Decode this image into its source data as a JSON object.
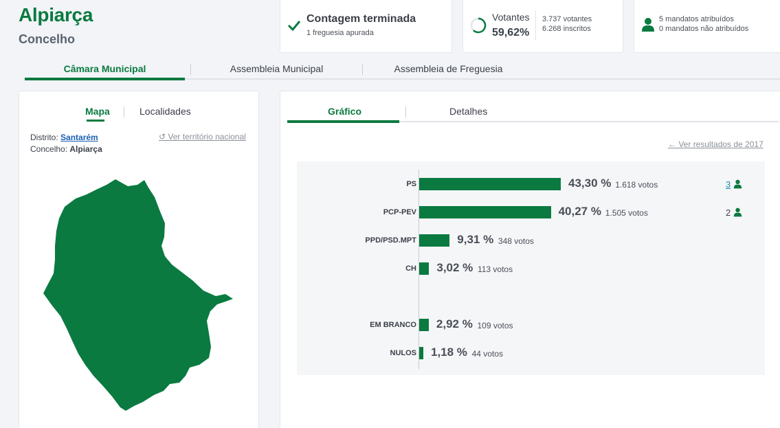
{
  "header": {
    "title": "Alpiarça",
    "subtitle": "Concelho"
  },
  "cards": {
    "status": {
      "title": "Contagem terminada",
      "subtitle": "1 freguesia apurada"
    },
    "voters": {
      "label": "Votantes",
      "percent": "59,62%",
      "percent_value": 59.62,
      "line1": "3.737 votantes",
      "line2": "6.268 inscritos"
    },
    "mandates": {
      "line1": "5 mandatos atribuídos",
      "line2": "0 mandatos não atribuídos"
    }
  },
  "main_tabs": [
    "Câmara Municipal",
    "Assembleia Municipal",
    "Assembleia de Freguesia"
  ],
  "left": {
    "tabs": [
      "Mapa",
      "Localidades"
    ],
    "district_label": "Distrito:",
    "district_value": "Santarém",
    "council_label": "Concelho:",
    "council_value": "Alpiarça",
    "reset_link": "Ver território nacional"
  },
  "right": {
    "tabs": [
      "Gráfico",
      "Detalhes"
    ],
    "back_link": "Ver resultados de 2017"
  },
  "chart_data": {
    "type": "bar",
    "categories": [
      "PS",
      "PCP-PEV",
      "PPD/PSD.MPT",
      "CH",
      "EM BRANCO",
      "NULOS"
    ],
    "values": [
      43.3,
      40.27,
      9.31,
      3.02,
      2.92,
      1.18
    ],
    "percent_labels": [
      "43,30 %",
      "40,27 %",
      "9,31 %",
      "3,02 %",
      "2,92 %",
      "1,18 %"
    ],
    "votes_labels": [
      "1.618 votos",
      "1.505 votos",
      "348 votos",
      "113 votos",
      "109 votos",
      "44 votos"
    ],
    "mandates": [
      "3",
      "2"
    ],
    "color": "#0a7a40"
  },
  "colors": {
    "accent": "#0a7a40"
  }
}
